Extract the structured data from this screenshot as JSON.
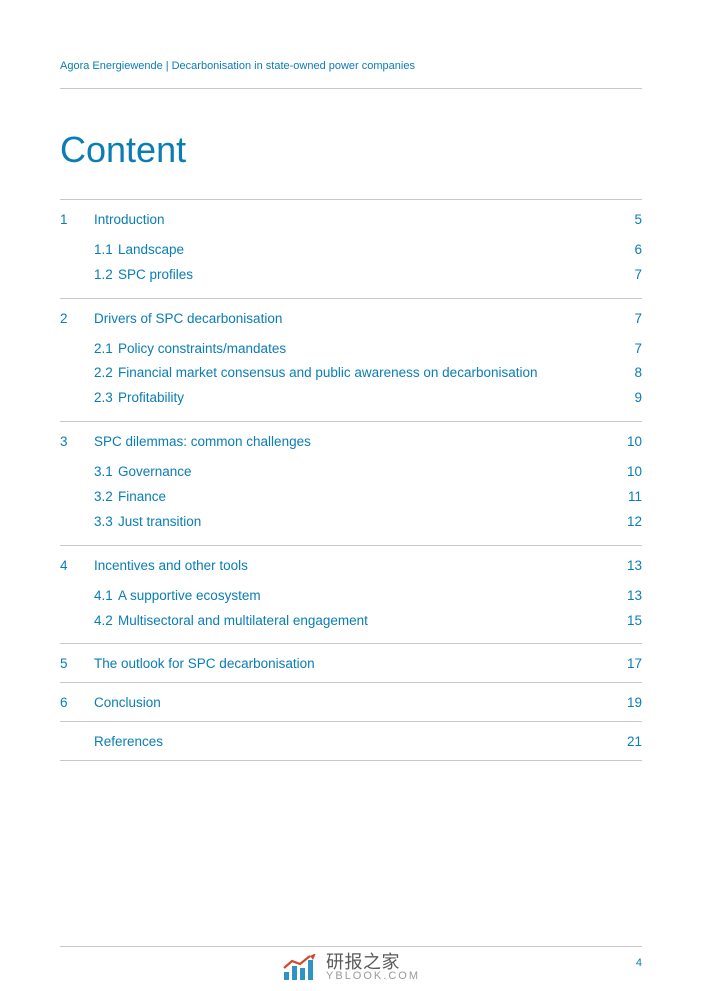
{
  "colors": {
    "accent": "#0a7db5",
    "rule": "#c8c8c8",
    "watermark_bar": "#2f93c6",
    "watermark_line": "#d04a2a",
    "watermark_text": "#5a5a5a",
    "watermark_sub": "#9a9a9a"
  },
  "header": {
    "org": "Agora Energiewende",
    "title": "Decarbonisation in state-owned power companies"
  },
  "page_title": "Content",
  "page_number": "4",
  "toc": [
    {
      "num": "1",
      "label": "Introduction",
      "page": "5",
      "subs": [
        {
          "num": "1.1",
          "label": "Landscape",
          "page": "6"
        },
        {
          "num": "1.2",
          "label": "SPC profiles",
          "page": "7"
        }
      ]
    },
    {
      "num": "2",
      "label": "Drivers of SPC decarbonisation",
      "page": "7",
      "subs": [
        {
          "num": "2.1",
          "label": "Policy constraints/mandates",
          "page": "7"
        },
        {
          "num": "2.2",
          "label": "Financial market consensus and public awareness on decarbonisation",
          "page": "8"
        },
        {
          "num": "2.3",
          "label": "Profitability",
          "page": "9"
        }
      ]
    },
    {
      "num": "3",
      "label": "SPC dilemmas: common challenges",
      "page": "10",
      "subs": [
        {
          "num": "3.1",
          "label": "Governance",
          "page": "10"
        },
        {
          "num": "3.2",
          "label": "Finance",
          "page": "11"
        },
        {
          "num": "3.3",
          "label": "Just transition",
          "page": "12"
        }
      ]
    },
    {
      "num": "4",
      "label": "Incentives and other tools",
      "page": "13",
      "subs": [
        {
          "num": "4.1",
          "label": "A supportive ecosystem",
          "page": "13"
        },
        {
          "num": "4.2",
          "label": "Multisectoral and multilateral engagement",
          "page": "15"
        }
      ]
    },
    {
      "num": "5",
      "label": "The outlook for SPC decarbonisation",
      "page": "17",
      "subs": []
    },
    {
      "num": "6",
      "label": "Conclusion",
      "page": "19",
      "subs": []
    },
    {
      "num": "",
      "label": "References",
      "page": "21",
      "subs": []
    }
  ],
  "watermark": {
    "top": "研报之家",
    "bottom": "YBLOOK.COM"
  }
}
